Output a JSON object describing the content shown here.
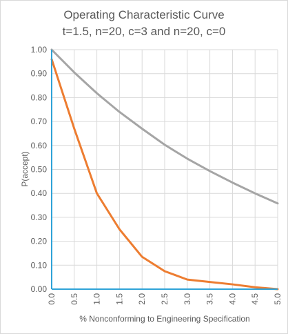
{
  "chart_data": {
    "type": "line",
    "title": "Operating Characteristic Curve",
    "subtitle": "t=1.5, n=20, c=3 and n=20, c=0",
    "xlabel": "% Nonconforming to Engineering Specification",
    "ylabel": "P(accept)",
    "xlim": [
      0,
      5
    ],
    "ylim": [
      0,
      1
    ],
    "x_ticks": [
      "0.0",
      "0.5",
      "1.0",
      "1.5",
      "2.0",
      "2.5",
      "3.0",
      "3.5",
      "4.0",
      "4.5",
      "5.0"
    ],
    "y_ticks": [
      "0.00",
      "0.10",
      "0.20",
      "0.30",
      "0.40",
      "0.50",
      "0.60",
      "0.70",
      "0.80",
      "0.90",
      "1.00"
    ],
    "grid": true,
    "series": [
      {
        "color": "#a5a5a5",
        "x": [
          0,
          0.5,
          1.0,
          1.5,
          2.0,
          2.5,
          3.0,
          3.5,
          4.0,
          4.5,
          5.0
        ],
        "values": [
          1.0,
          0.905,
          0.818,
          0.74,
          0.67,
          0.603,
          0.545,
          0.493,
          0.445,
          0.4,
          0.358
        ]
      },
      {
        "color": "#ed7d31",
        "x": [
          0,
          0.5,
          1.0,
          1.5,
          2.0,
          2.5,
          3.0,
          3.5,
          4.0,
          4.5,
          5.0
        ],
        "values": [
          0.96,
          0.67,
          0.4,
          0.25,
          0.135,
          0.075,
          0.04,
          0.03,
          0.02,
          0.008,
          0.0
        ]
      }
    ],
    "axis_color": "#2ea3d8"
  }
}
